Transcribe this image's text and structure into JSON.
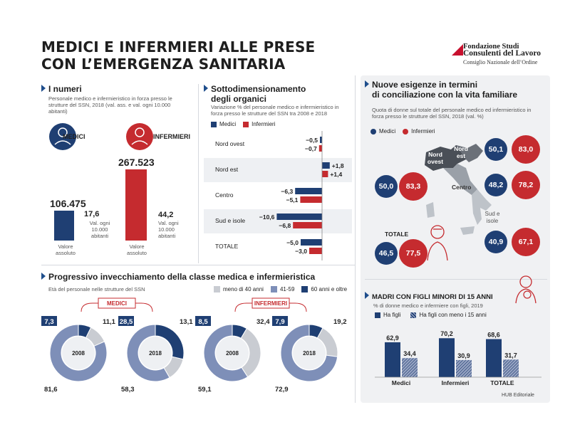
{
  "header": {
    "title_line1": "MEDICI E INFERMIERI ALLE PRESE",
    "title_line2": "CON L’EMERGENZA SANITARIA",
    "logo_line1": "Fondazione Studi",
    "logo_line2": "Consulenti del Lavoro",
    "logo_line3": "Consiglio Nazionale dell’Ordine"
  },
  "numeri": {
    "title": "I numeri",
    "subtitle": "Personale medico e infermieristico in forza presso le strutture del SSN, 2018 (val. ass. e val. ogni 10.000 abitanti)",
    "medici_label": "MEDICI",
    "infermieri_label": "INFERMIERI",
    "medici_value": "106.475",
    "infermieri_value": "267.523",
    "medici_rate": "17,6",
    "infermieri_rate": "44,2",
    "rate_label": "Val. ogni 10.000 abitanti",
    "abs_label": "Valore assoluto"
  },
  "sotto": {
    "title_line1": "Sottodimensionamento",
    "title_line2": "degli organici",
    "subtitle": "Variazione % del personale medico e infermieristico in forza presso le strutture del SSN tra 2008 e 2018",
    "legend_medici": "Medici",
    "legend_infermieri": "Infermieri"
  },
  "nuove": {
    "title_line1": "Nuove esigenze in termini",
    "title_line2": "di conciliazione con la vita familiare",
    "subtitle": "Quota di donne sul totale del personale medico ed infermieristico in forza presso le strutture del SSN, 2018 (val. %)",
    "legend_medici": "Medici",
    "legend_infermieri": "Infermieri",
    "region_nordovest": "Nord ovest",
    "region_nordest": "Nord est",
    "region_centro": "Centro",
    "region_sud": "Sud e isole",
    "totale_label": "TOTALE",
    "nordovest": {
      "medici": "50,0",
      "infermieri": "83,3"
    },
    "nordest": {
      "medici": "50,1",
      "infermieri": "83,0"
    },
    "centro": {
      "medici": "48,2",
      "infermieri": "78,2"
    },
    "sud": {
      "medici": "40,9",
      "infermieri": "67,1"
    },
    "totale": {
      "medici": "46,5",
      "infermieri": "77,5"
    }
  },
  "madri": {
    "title": "MADRI CON FIGLI MINORI DI 15 ANNI",
    "subtitle": "% di donne medico e infermiere con figli, 2019",
    "legend_a": "Ha figli",
    "legend_b": "Ha figli con meno i 15 anni"
  },
  "invecchiamento": {
    "title": "Progressivo invecchiamento della classe medica e infermieristica",
    "subtitle": "Età del personale nelle strutture del SSN",
    "legend_a": "meno di 40 anni",
    "legend_b": "41-59",
    "legend_c": "60 anni e oltre",
    "medici_tag": "MEDICI",
    "infermieri_tag": "INFERMIERI"
  },
  "footer": {
    "credit": "HUB Editoriale"
  },
  "colors": {
    "navy": "#1f3f73",
    "red": "#c52b2f",
    "mid_blue": "#7e8fb8",
    "light_grey": "#c9ccd2"
  },
  "chart_data": [
    {
      "type": "bar",
      "id": "sottodimensionamento",
      "categories": [
        "Nord ovest",
        "Nord est",
        "Centro",
        "Sud e isole",
        "TOTALE"
      ],
      "series": [
        {
          "name": "Medici",
          "values": [
            -0.5,
            1.8,
            -6.3,
            -10.6,
            -5.0
          ],
          "labels": [
            "−0,5",
            "+1,8",
            "−6,3",
            "−10,6",
            "−5,0"
          ]
        },
        {
          "name": "Infermieri",
          "values": [
            -0.7,
            1.4,
            -5.1,
            -6.8,
            -3.0
          ],
          "labels": [
            "−0,7",
            "+1,4",
            "−5,1",
            "−6,8",
            "−3,0"
          ]
        }
      ]
    },
    {
      "type": "bar",
      "id": "madri",
      "categories": [
        "Medici",
        "Infermieri",
        "TOTALE"
      ],
      "series": [
        {
          "name": "Ha figli",
          "values": [
            62.9,
            70.2,
            68.6
          ],
          "labels": [
            "62,9",
            "70,2",
            "68,6"
          ]
        },
        {
          "name": "Ha figli con meno i 15 anni",
          "values": [
            34.4,
            30.9,
            31.7
          ],
          "labels": [
            "34,4",
            "30,9",
            "31,7"
          ]
        }
      ]
    },
    {
      "type": "pie",
      "id": "eta",
      "charts": [
        {
          "group": "MEDICI",
          "year": "2008",
          "values": {
            "meno di 40 anni": 11.1,
            "41-59": 81.6,
            "60 anni e oltre": 7.3
          },
          "labels": [
            "11,1",
            "81,6",
            "7,3"
          ]
        },
        {
          "group": "MEDICI",
          "year": "2018",
          "values": {
            "meno di 40 anni": 13.1,
            "41-59": 58.3,
            "60 anni e oltre": 28.5
          },
          "labels": [
            "13,1",
            "58,3",
            "28,5"
          ]
        },
        {
          "group": "INFERMIERI",
          "year": "2008",
          "values": {
            "meno di 40 anni": 32.4,
            "41-59": 59.1,
            "60 anni e oltre": 8.5
          },
          "labels": [
            "32,4",
            "59,1",
            "8,5"
          ]
        },
        {
          "group": "INFERMIERI",
          "year": "2018",
          "values": {
            "meno di 40 anni": 19.2,
            "41-59": 72.9,
            "60 anni e oltre": 7.9
          },
          "labels": [
            "19,2",
            "72,9",
            "7,9"
          ]
        }
      ]
    }
  ]
}
